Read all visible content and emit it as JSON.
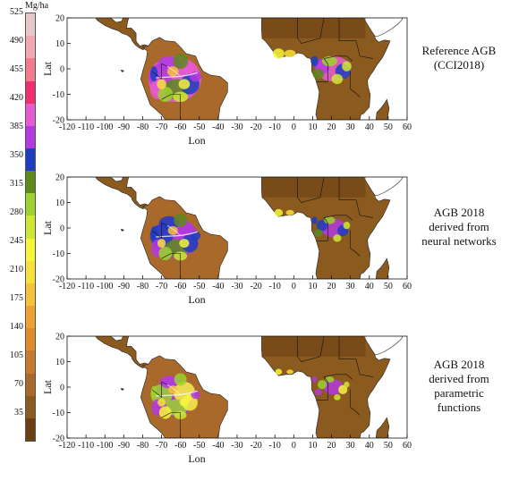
{
  "legend": {
    "unit": "Mg/ha",
    "ticks": [
      "35",
      "70",
      "105",
      "140",
      "175",
      "210",
      "245",
      "280",
      "315",
      "350",
      "385",
      "420",
      "455",
      "490",
      "525"
    ],
    "colors": [
      "#6b3f12",
      "#8b5a1f",
      "#a9692a",
      "#c77a2c",
      "#e08a2a",
      "#f0a030",
      "#f5c23a",
      "#f7e03c",
      "#f6f53a",
      "#cfe635",
      "#9bd22e",
      "#5d8a1c",
      "#1f3dbf",
      "#b33ae0",
      "#e65bd2",
      "#f02e6e",
      "#f57a8a",
      "#f2a8b0",
      "#e9c7c9"
    ]
  },
  "panels": [
    {
      "title": [
        "Reference AGB",
        "(CCI2018)"
      ],
      "variant": 1.0
    },
    {
      "title": [
        "AGB 2018",
        "derived from",
        "neural networks"
      ],
      "variant": 0.7
    },
    {
      "title": [
        "AGB 2018",
        "derived from",
        "parametric",
        "functions"
      ],
      "variant": 0.55
    }
  ],
  "axes": {
    "xlabel": "Lon",
    "ylabel": "Lat",
    "xticks": [
      "-120",
      "-110",
      "-100",
      "-90",
      "-80",
      "-70",
      "-60",
      "-50",
      "-40",
      "-30",
      "-20",
      "-10",
      "0",
      "10",
      "20",
      "30",
      "40",
      "50",
      "60"
    ],
    "yticks": [
      "20",
      "10",
      "0",
      "-10",
      "-20"
    ]
  }
}
